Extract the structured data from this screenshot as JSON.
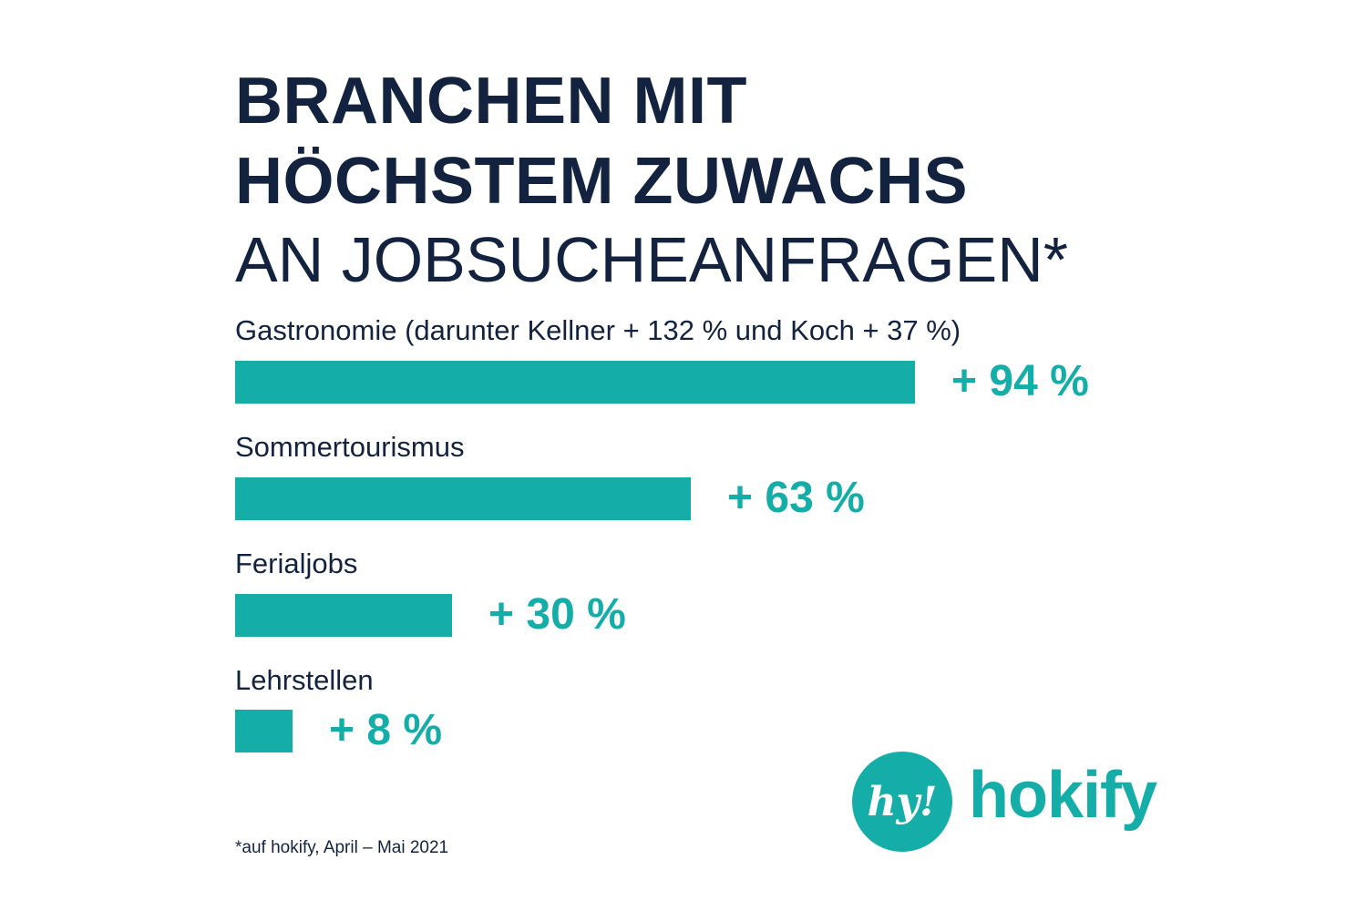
{
  "title": {
    "line1": "BRANCHEN MIT",
    "line2": "HÖCHSTEM ZUWACHS",
    "line3": "AN JOBSUCHEANFRAGEN*"
  },
  "chart_data": {
    "type": "bar",
    "orientation": "horizontal",
    "categories": [
      "Gastronomie (darunter Kellner + 132 % und Koch + 37 %)",
      "Sommertourismus",
      "Ferialjobs",
      "Lehrstellen"
    ],
    "values": [
      94,
      63,
      30,
      8
    ],
    "value_labels": [
      "+ 94 %",
      "+ 63 %",
      "+ 30 %",
      "+ 8 %"
    ],
    "bar_color": "#14ada8",
    "grid": false
  },
  "footnote": "*auf hokify, April – Mai 2021",
  "logo": {
    "mark": "hy!",
    "wordmark": "hokify",
    "color": "#14ada8"
  }
}
